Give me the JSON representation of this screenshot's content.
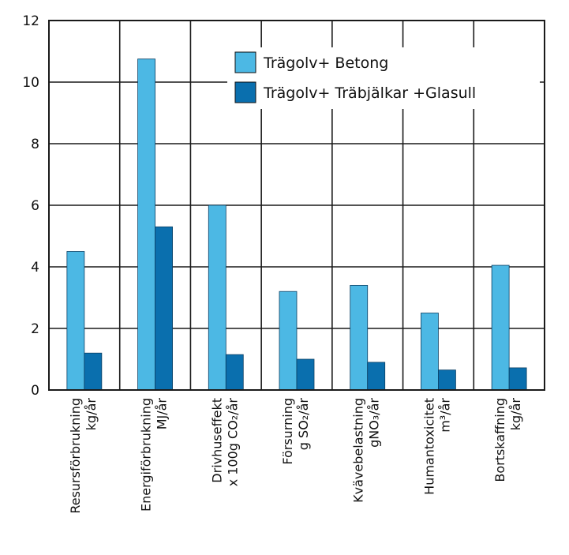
{
  "chart_data": {
    "type": "bar",
    "categories": [
      {
        "name": "Resursförbrukning",
        "unit": "kg/år"
      },
      {
        "name": "Energiförbrukning",
        "unit": "MJ/år"
      },
      {
        "name": "Drivhuseffekt",
        "unit": "x 100g CO₂/år"
      },
      {
        "name": "Försurning",
        "unit": "g SO₂/år"
      },
      {
        "name": "Kvävebelastning",
        "unit": "gNO₃/år"
      },
      {
        "name": "Humantoxicitet",
        "unit": "m³/år"
      },
      {
        "name": "Bortskaffning",
        "unit": "kg/år"
      }
    ],
    "series": [
      {
        "name": "Trägolv+ Betong",
        "color": "#4cb8e4",
        "values": [
          4.5,
          10.75,
          6.0,
          3.2,
          3.4,
          2.5,
          4.05
        ]
      },
      {
        "name": "Trägolv+ Träbjälkar +Glasull",
        "color": "#0a6fae",
        "values": [
          1.2,
          5.3,
          1.15,
          1.0,
          0.9,
          0.65,
          0.72
        ]
      }
    ],
    "ylim": [
      0,
      12
    ],
    "yticks": [
      0,
      2,
      4,
      6,
      8,
      10,
      12
    ],
    "grid": true,
    "legend_position": "top-right"
  }
}
